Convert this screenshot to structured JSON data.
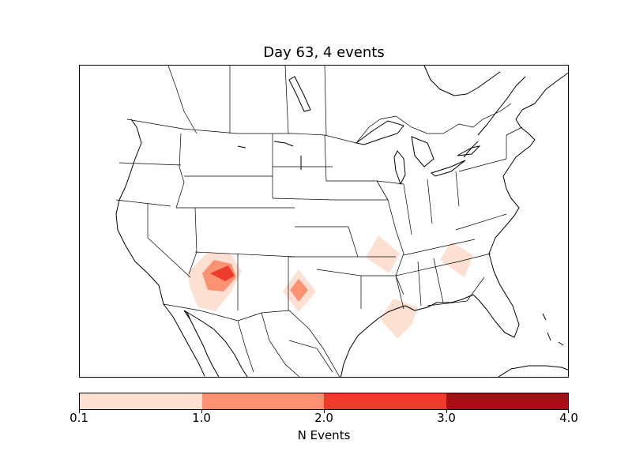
{
  "title": "Day 63, 4 events",
  "colorbar": {
    "label": "N Events",
    "ticks": [
      "0.1",
      "1.0",
      "2.0",
      "3.0",
      "4.0"
    ],
    "colors": [
      "#fee0d2",
      "#fc9272",
      "#ef3b2c",
      "#a50f15"
    ]
  },
  "colors": {
    "coastline": "#000000",
    "borders": "#000000",
    "background": "#ffffff"
  }
}
